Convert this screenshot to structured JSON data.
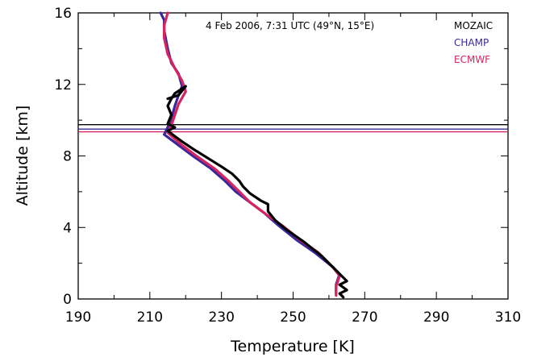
{
  "chart_data": {
    "type": "line",
    "annotation": "4 Feb 2006, 7:31 UTC (49°N, 15°E)",
    "xlabel": "Temperature [K]",
    "ylabel": "Altitude [km]",
    "xlim": [
      190,
      310
    ],
    "ylim": [
      0,
      16
    ],
    "x_ticks": [
      190,
      210,
      230,
      250,
      270,
      290,
      310
    ],
    "y_ticks": [
      0,
      4,
      8,
      12,
      16
    ],
    "x_minor_ticks": [
      200,
      220,
      240,
      260,
      280,
      300
    ],
    "y_minor_ticks": [
      2,
      6,
      10,
      14
    ],
    "legend_position": "top-right",
    "series": [
      {
        "name": "MOZAIC",
        "color": "#000000",
        "points": [
          [
            264,
            0.1
          ],
          [
            263,
            0.3
          ],
          [
            265,
            0.5
          ],
          [
            263,
            0.8
          ],
          [
            265,
            1.0
          ],
          [
            262,
            1.6
          ],
          [
            258,
            2.4
          ],
          [
            253,
            3.2
          ],
          [
            248,
            3.9
          ],
          [
            245,
            4.4
          ],
          [
            243,
            4.9
          ],
          [
            243,
            5.3
          ],
          [
            241,
            5.5
          ],
          [
            238,
            5.9
          ],
          [
            236,
            6.3
          ],
          [
            235,
            6.6
          ],
          [
            233,
            7.0
          ],
          [
            230,
            7.4
          ],
          [
            226,
            7.9
          ],
          [
            222,
            8.4
          ],
          [
            219,
            8.8
          ],
          [
            217,
            9.1
          ],
          [
            215,
            9.4
          ],
          [
            217,
            9.6
          ],
          [
            215,
            9.8
          ],
          [
            216,
            10.3
          ],
          [
            215,
            10.8
          ],
          [
            216,
            11.2
          ],
          [
            217,
            11.5
          ],
          [
            220,
            11.9
          ],
          [
            218,
            11.4
          ],
          [
            215,
            11.2
          ]
        ]
      },
      {
        "name": "CHAMP",
        "color": "#3a2899",
        "points": [
          [
            262,
            0.3
          ],
          [
            262,
            0.8
          ],
          [
            263,
            1.4
          ],
          [
            261,
            1.8
          ],
          [
            256,
            2.6
          ],
          [
            251,
            3.3
          ],
          [
            246,
            4.1
          ],
          [
            242,
            4.8
          ],
          [
            238,
            5.4
          ],
          [
            234,
            6.0
          ],
          [
            231,
            6.6
          ],
          [
            227,
            7.3
          ],
          [
            222,
            8.0
          ],
          [
            218,
            8.6
          ],
          [
            214,
            9.2
          ],
          [
            215,
            9.6
          ],
          [
            216,
            10.1
          ],
          [
            217,
            10.8
          ],
          [
            218,
            11.4
          ],
          [
            219,
            11.9
          ],
          [
            218,
            12.6
          ],
          [
            216,
            13.2
          ],
          [
            215,
            14.0
          ],
          [
            214,
            15.0
          ],
          [
            214,
            15.6
          ],
          [
            213,
            16.0
          ]
        ]
      },
      {
        "name": "ECMWF",
        "color": "#d6245f",
        "points": [
          [
            262,
            0.2
          ],
          [
            262,
            0.7
          ],
          [
            263,
            1.3
          ],
          [
            261,
            1.8
          ],
          [
            257,
            2.6
          ],
          [
            252,
            3.3
          ],
          [
            247,
            4.1
          ],
          [
            242,
            4.8
          ],
          [
            238,
            5.4
          ],
          [
            235,
            6.0
          ],
          [
            232,
            6.6
          ],
          [
            228,
            7.3
          ],
          [
            223,
            8.0
          ],
          [
            219,
            8.6
          ],
          [
            215,
            9.3
          ],
          [
            216,
            9.7
          ],
          [
            217,
            10.3
          ],
          [
            218,
            10.9
          ],
          [
            220,
            11.6
          ],
          [
            219,
            12.2
          ],
          [
            217,
            12.9
          ],
          [
            215,
            13.7
          ],
          [
            214,
            14.6
          ],
          [
            214,
            15.3
          ],
          [
            215,
            16.0
          ]
        ]
      }
    ],
    "horizontal_lines": [
      {
        "y": 9.75,
        "color": "#000000"
      },
      {
        "y": 9.5,
        "color": "#3a2899"
      },
      {
        "y": 9.35,
        "color": "#d6245f"
      }
    ]
  }
}
